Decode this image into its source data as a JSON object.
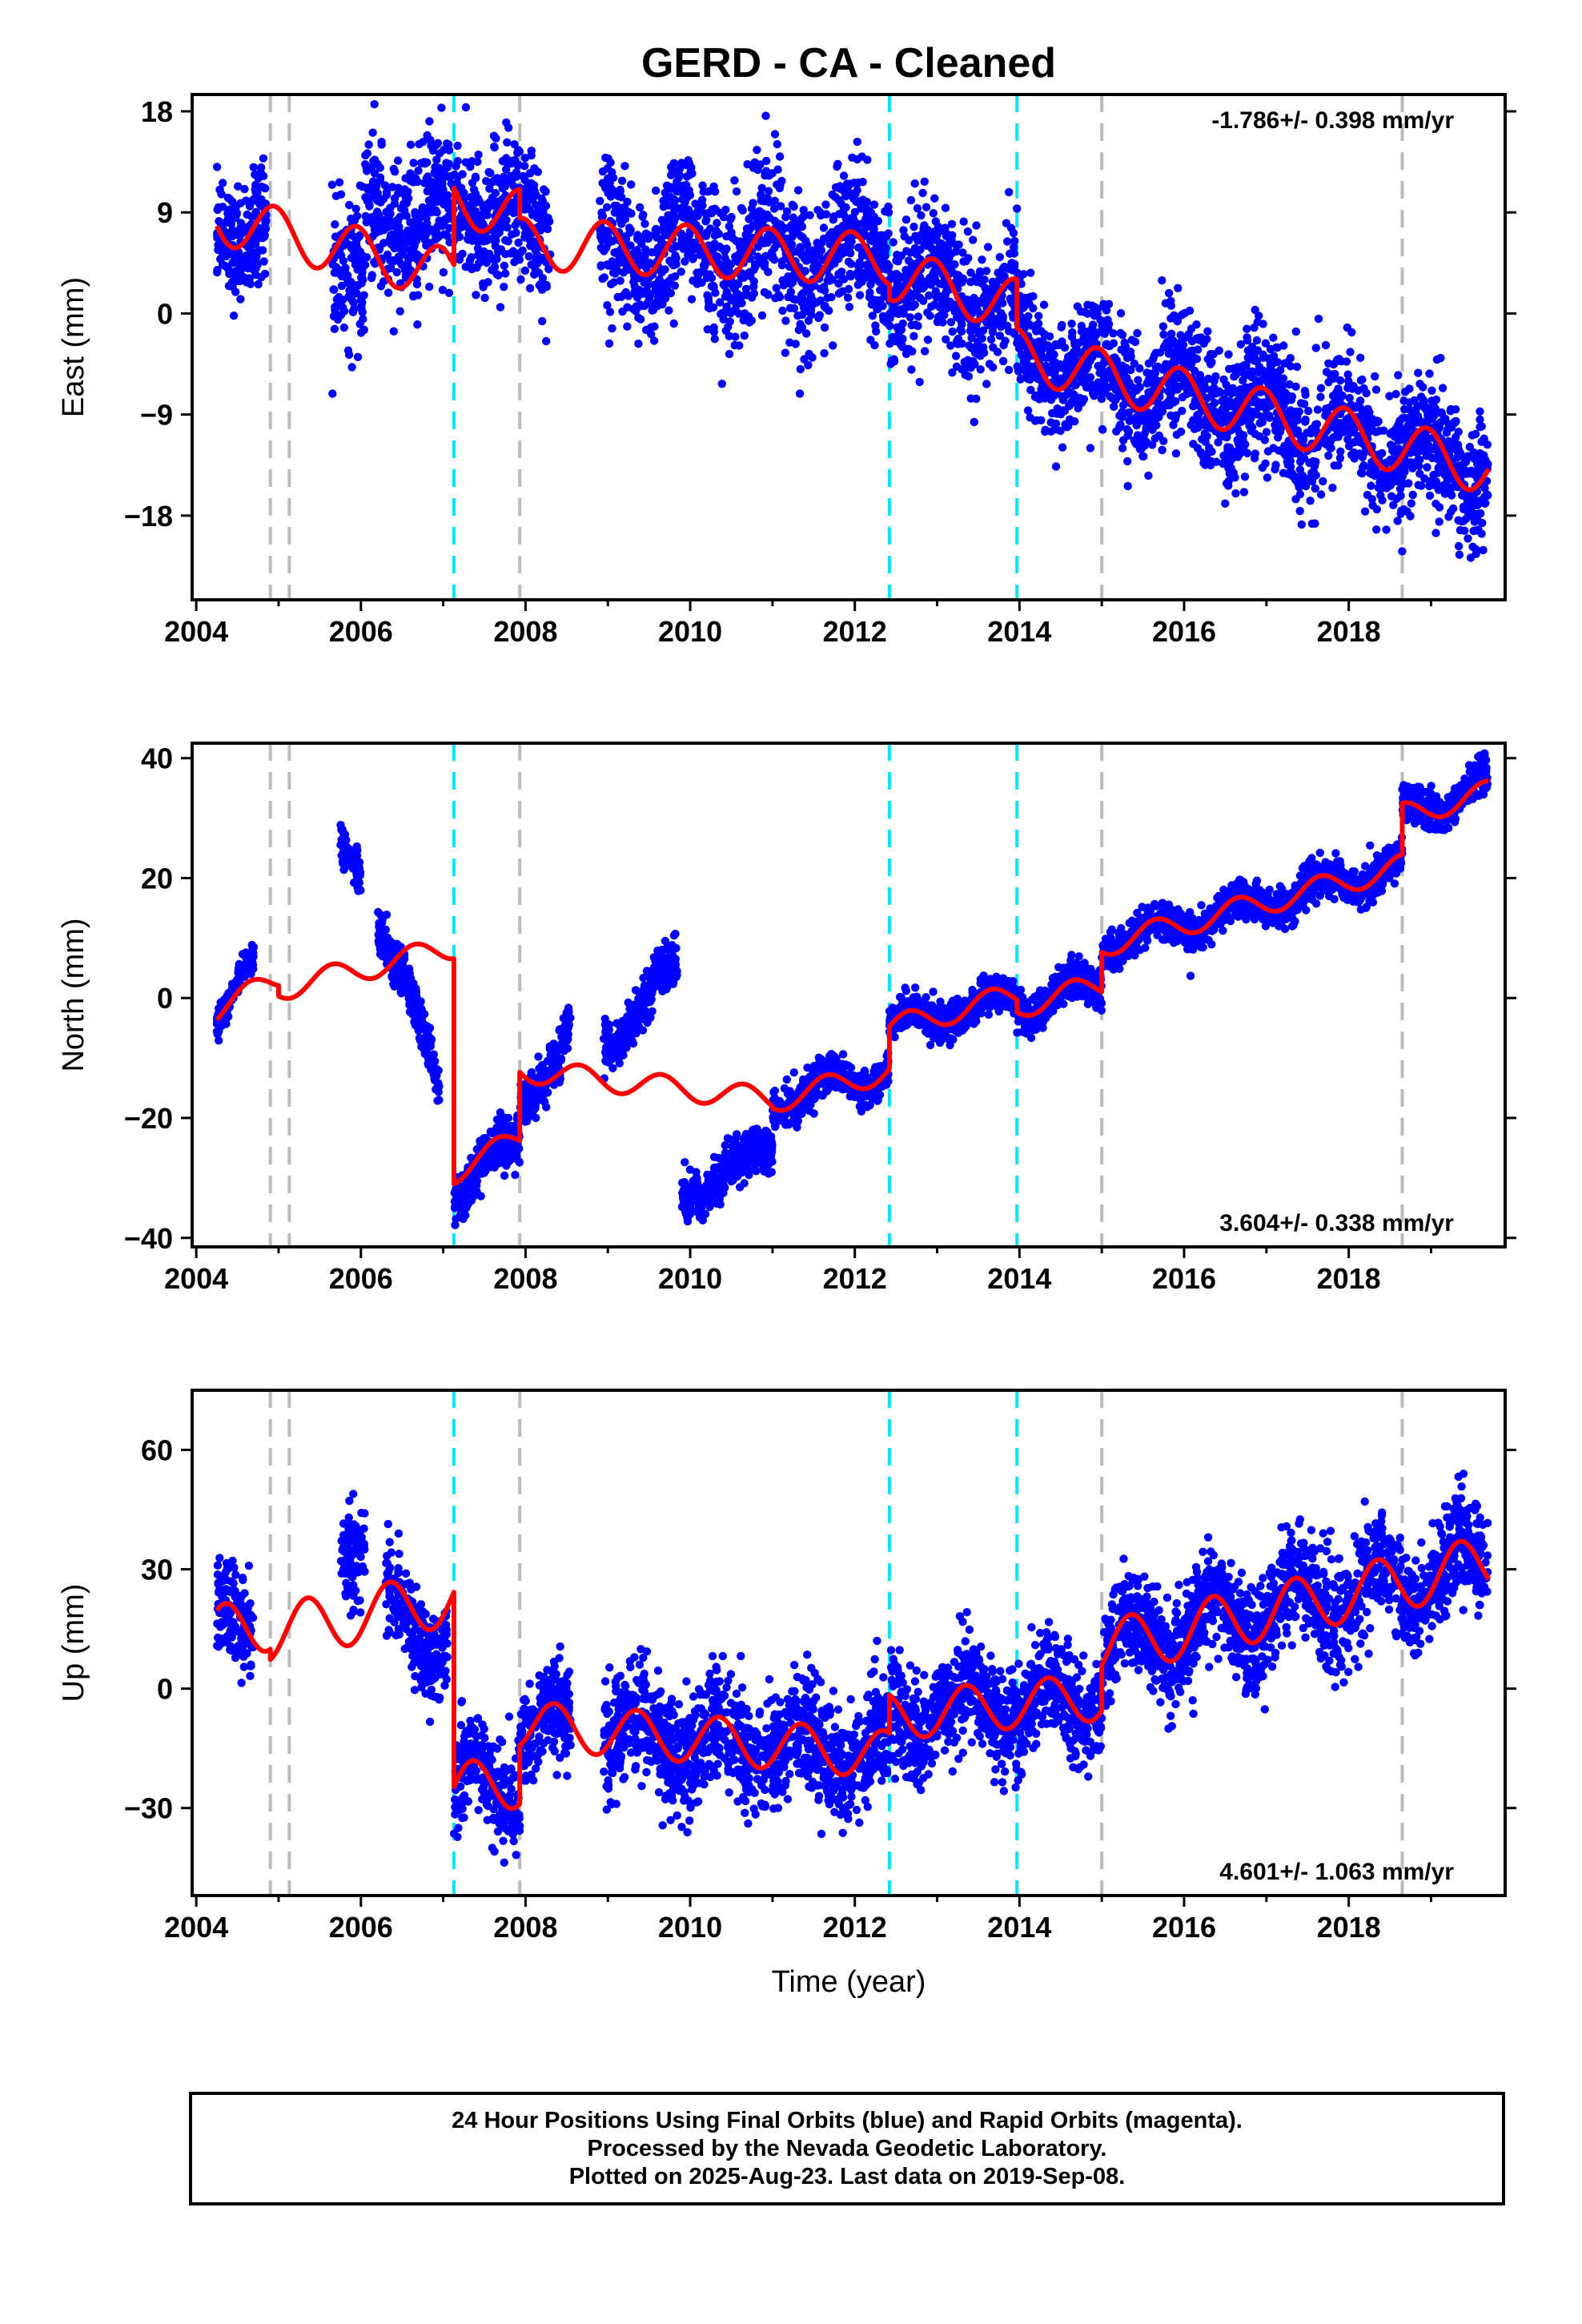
{
  "title": "GERD  - CA - Cleaned",
  "footer": {
    "line1": "24 Hour Positions Using Final Orbits (blue) and Rapid Orbits (magenta).",
    "line2": "Processed by the Nevada Geodetic Laboratory.",
    "line3": "Plotted on 2025-Aug-23. Last data on 2019-Sep-08."
  },
  "colors": {
    "points": "#0000ff",
    "model": "#ff0000",
    "equipment_change": "#bbbbbb",
    "earthquake": "#00e5ff"
  },
  "chart_data": [
    {
      "type": "scatter",
      "ylabel": "East (mm)",
      "xlabel": "",
      "xlim": [
        2003.95,
        2019.9
      ],
      "ylim": [
        -25.5,
        19.5
      ],
      "xticks": [
        "2004",
        "2006",
        "2008",
        "2010",
        "2012",
        "2014",
        "2016",
        "2018"
      ],
      "yticks": [
        "18",
        "9",
        "0",
        "−9",
        "−18"
      ],
      "rate_text": "-1.786+/- 0.398 mm/yr",
      "rate_position": "top-right",
      "grey_lines": [
        2004.9,
        2005.13,
        2007.93,
        2015.0,
        2018.65
      ],
      "cyan_lines": [
        2007.13,
        2012.42,
        2013.97
      ],
      "model_segments": [
        {
          "t0": 2004.25,
          "t1": 2007.13,
          "y0": 8.5,
          "slope": -1.786,
          "amp": 2.3,
          "ph": 0.3
        },
        {
          "t0": 2007.13,
          "t1": 2007.93,
          "y0": 10.2,
          "slope": -1.786,
          "amp": 2.3,
          "ph": 0.3
        },
        {
          "t0": 2007.93,
          "t1": 2012.42,
          "y0": 6.2,
          "slope": -0.3,
          "amp": 2.3,
          "ph": 0.3
        },
        {
          "t0": 2012.42,
          "t1": 2013.97,
          "y0": 3.5,
          "slope": -1.786,
          "amp": 2.3,
          "ph": 0.3
        },
        {
          "t0": 2013.97,
          "t1": 2019.7,
          "y0": -3.6,
          "slope": -1.786,
          "amp": 2.3,
          "ph": 0.3
        }
      ],
      "data_segments": [
        {
          "t0": 2004.25,
          "t1": 2004.85,
          "model": 0,
          "noise": 2.5,
          "drift": [
            0,
            0
          ]
        },
        {
          "t0": 2005.65,
          "t1": 2006.05,
          "model": 0,
          "noise": 3.0,
          "drift": [
            -2,
            -5
          ]
        },
        {
          "t0": 2006.05,
          "t1": 2007.13,
          "model": 0,
          "noise": 3.2,
          "drift": [
            3,
            5
          ]
        },
        {
          "t0": 2007.13,
          "t1": 2007.93,
          "model": 1,
          "noise": 3.0,
          "drift": [
            0,
            0
          ]
        },
        {
          "t0": 2007.93,
          "t1": 2008.3,
          "model": 2,
          "noise": 3.0,
          "drift": [
            0,
            0
          ]
        },
        {
          "t0": 2008.9,
          "t1": 2012.42,
          "model": 2,
          "noise": 3.2,
          "drift": [
            0,
            0
          ]
        },
        {
          "t0": 2012.42,
          "t1": 2013.97,
          "model": 3,
          "noise": 3.0,
          "drift": [
            0,
            0
          ]
        },
        {
          "t0": 2013.97,
          "t1": 2019.69,
          "model": 4,
          "noise": 2.8,
          "drift": [
            0,
            0
          ]
        }
      ]
    },
    {
      "type": "scatter",
      "ylabel": "North (mm)",
      "xlabel": "",
      "xlim": [
        2003.95,
        2019.9
      ],
      "ylim": [
        -41.5,
        42.5
      ],
      "xticks": [
        "2004",
        "2006",
        "2008",
        "2010",
        "2012",
        "2014",
        "2016",
        "2018"
      ],
      "yticks": [
        "40",
        "20",
        "0",
        "−20",
        "−40"
      ],
      "rate_text": "3.604+/- 0.338 mm/yr",
      "rate_position": "bottom-right",
      "grey_lines": [
        2004.9,
        2005.13,
        2007.93,
        2015.0,
        2018.65
      ],
      "cyan_lines": [
        2007.13,
        2012.42,
        2013.97
      ],
      "model_segments": [
        {
          "t0": 2004.25,
          "t1": 2005.0,
          "y0": -2.0,
          "slope": 7.0,
          "amp": 2.0,
          "ph": 0.6
        },
        {
          "t0": 2005.0,
          "t1": 2007.13,
          "y0": 1.5,
          "slope": 3.3,
          "amp": 2.0,
          "ph": 0.6
        },
        {
          "t0": 2007.13,
          "t1": 2007.93,
          "y0": -29.0,
          "slope": 7.0,
          "amp": 2.0,
          "ph": 0.6
        },
        {
          "t0": 2007.93,
          "t1": 2011.0,
          "y0": -12.0,
          "slope": -1.6,
          "amp": 2.0,
          "ph": 0.6
        },
        {
          "t0": 2011.0,
          "t1": 2012.42,
          "y0": -17.2,
          "slope": 3.604,
          "amp": 2.0,
          "ph": 0.6
        },
        {
          "t0": 2012.42,
          "t1": 2013.97,
          "y0": -5.0,
          "slope": 3.604,
          "amp": 2.0,
          "ph": 0.6
        },
        {
          "t0": 2013.97,
          "t1": 2015.0,
          "y0": -1.5,
          "slope": 3.604,
          "amp": 2.0,
          "ph": 0.6
        },
        {
          "t0": 2015.0,
          "t1": 2018.65,
          "y0": 8.8,
          "slope": 3.604,
          "amp": 2.0,
          "ph": 0.6
        },
        {
          "t0": 2018.65,
          "t1": 2019.7,
          "y0": 30.5,
          "slope": 3.604,
          "amp": 2.0,
          "ph": 0.6
        }
      ],
      "data_segments": [
        {
          "t0": 2004.25,
          "t1": 2004.7,
          "model": 0,
          "noise": 1.2,
          "drift": [
            -1,
            4
          ]
        },
        {
          "t0": 2005.75,
          "t1": 2006.0,
          "model": 1,
          "noise": 1.5,
          "drift": [
            20,
            17
          ]
        },
        {
          "t0": 2006.2,
          "t1": 2006.95,
          "model": 1,
          "noise": 2.0,
          "drift": [
            8,
            -22
          ]
        },
        {
          "t0": 2007.13,
          "t1": 2007.93,
          "model": 2,
          "noise": 2.0,
          "drift": [
            -3,
            0
          ]
        },
        {
          "t0": 2007.93,
          "t1": 2008.55,
          "model": 3,
          "noise": 2.0,
          "drift": [
            -5,
            6
          ]
        },
        {
          "t0": 2008.95,
          "t1": 2009.85,
          "model": 3,
          "noise": 2.0,
          "drift": [
            6,
            20
          ]
        },
        {
          "t0": 2009.9,
          "t1": 2011.0,
          "model": 3,
          "noise": 2.0,
          "drift": [
            -18,
            -8
          ]
        },
        {
          "t0": 2011.0,
          "t1": 2012.42,
          "model": 4,
          "noise": 1.5,
          "drift": [
            0,
            0
          ]
        },
        {
          "t0": 2012.42,
          "t1": 2013.97,
          "model": 5,
          "noise": 1.5,
          "drift": [
            0,
            0
          ]
        },
        {
          "t0": 2013.97,
          "t1": 2015.0,
          "model": 6,
          "noise": 1.5,
          "drift": [
            0,
            0
          ]
        },
        {
          "t0": 2015.0,
          "t1": 2018.65,
          "model": 7,
          "noise": 1.5,
          "drift": [
            0,
            0
          ]
        },
        {
          "t0": 2018.65,
          "t1": 2019.69,
          "model": 8,
          "noise": 1.5,
          "drift": [
            0,
            1.5
          ]
        }
      ]
    },
    {
      "type": "scatter",
      "ylabel": "Up (mm)",
      "xlabel": "Time (year)",
      "xlim": [
        2003.95,
        2019.9
      ],
      "ylim": [
        -52,
        75
      ],
      "xticks": [
        "2004",
        "2006",
        "2008",
        "2010",
        "2012",
        "2014",
        "2016",
        "2018"
      ],
      "yticks": [
        "60",
        "30",
        "0",
        "−30"
      ],
      "rate_text": "4.601+/- 1.063 mm/yr",
      "rate_position": "bottom-right",
      "grey_lines": [
        2004.9,
        2005.13,
        2007.93,
        2015.0,
        2018.65
      ],
      "cyan_lines": [
        2007.13,
        2012.42,
        2013.97
      ],
      "model_segments": [
        {
          "t0": 2004.25,
          "t1": 2004.9,
          "y0": 14,
          "slope": 4.0,
          "amp": 7.0,
          "ph": 0.9
        },
        {
          "t0": 2004.9,
          "t1": 2007.13,
          "y0": 14,
          "slope": 4.0,
          "amp": 7.0,
          "ph": 0.9
        },
        {
          "t0": 2007.13,
          "t1": 2007.93,
          "y0": -26,
          "slope": 4.0,
          "amp": 7.0,
          "ph": 0.9
        },
        {
          "t0": 2007.93,
          "t1": 2012.42,
          "y0": -9,
          "slope": -1.7,
          "amp": 6.0,
          "ph": 0.9
        },
        {
          "t0": 2012.42,
          "t1": 2013.97,
          "y0": -7,
          "slope": 2.0,
          "amp": 6.0,
          "ph": 0.9
        },
        {
          "t0": 2013.97,
          "t1": 2015.0,
          "y0": -4,
          "slope": 2.0,
          "amp": 6.0,
          "ph": 0.9
        },
        {
          "t0": 2015.0,
          "t1": 2019.7,
          "y0": 10,
          "slope": 4.601,
          "amp": 7.0,
          "ph": 0.9
        }
      ],
      "data_segments": [
        {
          "t0": 2004.25,
          "t1": 2004.7,
          "model": 0,
          "noise": 6.0,
          "drift": [
            0,
            0
          ]
        },
        {
          "t0": 2005.75,
          "t1": 2006.05,
          "model": 1,
          "noise": 6.0,
          "drift": [
            22,
            20
          ]
        },
        {
          "t0": 2006.3,
          "t1": 2007.05,
          "model": 1,
          "noise": 6.0,
          "drift": [
            0,
            -10
          ]
        },
        {
          "t0": 2007.13,
          "t1": 2007.93,
          "model": 2,
          "noise": 6.0,
          "drift": [
            0,
            0
          ]
        },
        {
          "t0": 2007.93,
          "t1": 2008.55,
          "model": 3,
          "noise": 6.0,
          "drift": [
            0,
            0
          ]
        },
        {
          "t0": 2008.95,
          "t1": 2012.42,
          "model": 3,
          "noise": 7.0,
          "drift": [
            0,
            0
          ]
        },
        {
          "t0": 2012.42,
          "t1": 2013.97,
          "model": 4,
          "noise": 6.5,
          "drift": [
            0,
            0
          ]
        },
        {
          "t0": 2013.97,
          "t1": 2015.0,
          "model": 5,
          "noise": 6.5,
          "drift": [
            0,
            0
          ]
        },
        {
          "t0": 2015.0,
          "t1": 2019.69,
          "model": 6,
          "noise": 6.5,
          "drift": [
            0,
            0
          ]
        }
      ]
    }
  ]
}
